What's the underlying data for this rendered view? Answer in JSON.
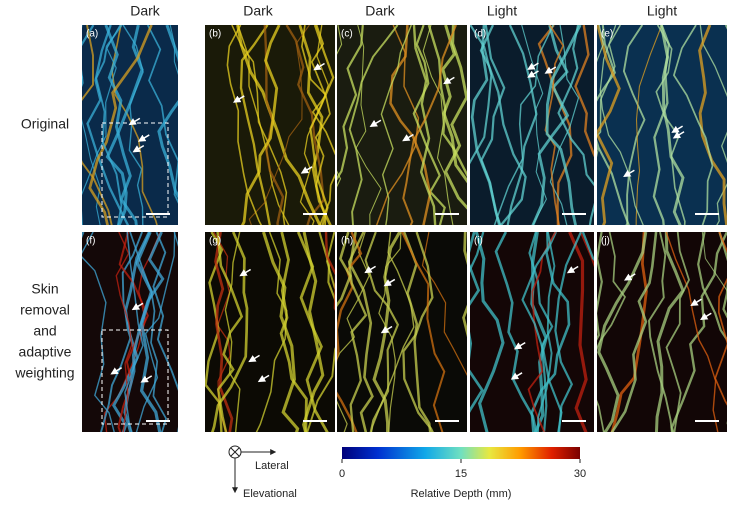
{
  "column_headers": [
    "Dark",
    "Dark",
    "Dark",
    "Light",
    "Light"
  ],
  "row_labels": [
    [
      "Original"
    ],
    [
      "Skin",
      "removal",
      "and",
      "adaptive",
      "weighting"
    ]
  ],
  "panels": [
    "(a)",
    "(b)",
    "(c)",
    "(d)",
    "(e)",
    "(f)",
    "(g)",
    "(h)",
    "(i)",
    "(j)"
  ],
  "axes": {
    "lateral": "Lateral",
    "elevational": "Elevational"
  },
  "colorbar": {
    "title": "Relative Depth (mm)",
    "range": [
      0,
      30
    ],
    "ticks": [
      0,
      15,
      30
    ]
  }
}
